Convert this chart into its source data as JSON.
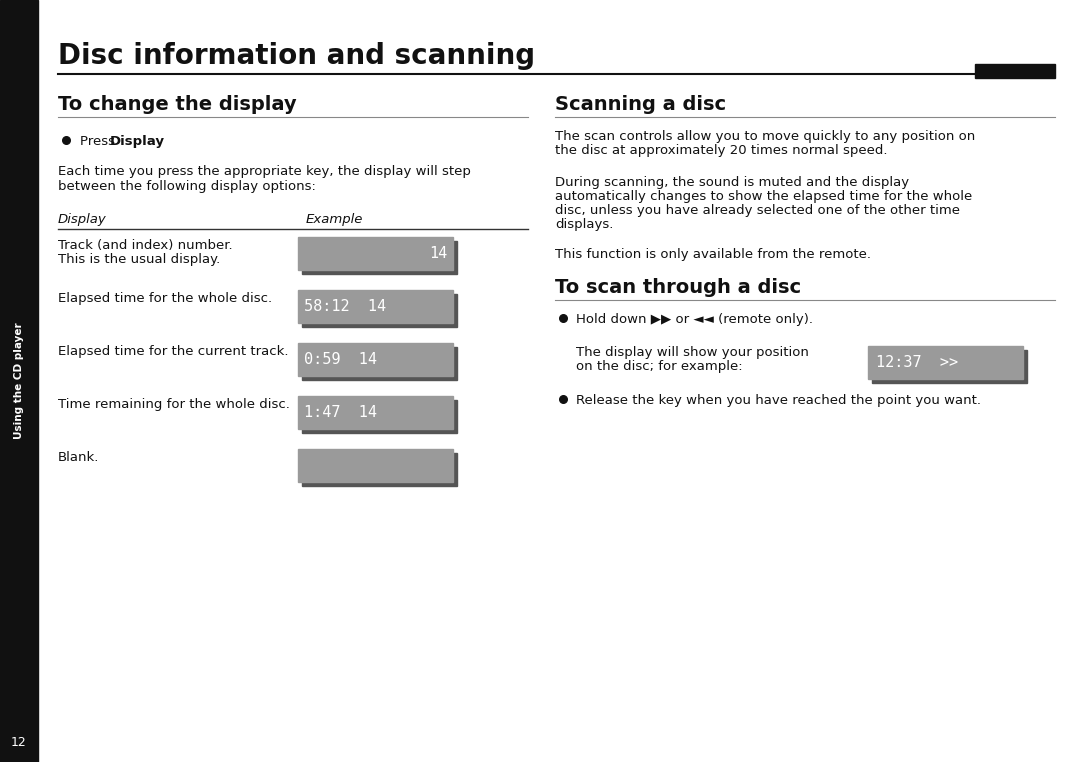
{
  "page_bg": "#ffffff",
  "sidebar_bg": "#111111",
  "sidebar_text": "Using the CD player",
  "page_num": "12",
  "main_title": "Disc information and scanning",
  "left_section_title": "To change the display",
  "right_section_title": "Scanning a disc",
  "right_section2_title": "To scan through a disc",
  "display_col_header": "Display",
  "example_col_header": "Example",
  "each_time_text1": "Each time you press the appropriate key, the display will step",
  "each_time_text2": "between the following display options:",
  "display_rows": [
    {
      "label1": "Track (and index) number.",
      "label2": "This is the usual display.",
      "lcd_text": "14",
      "align": "right"
    },
    {
      "label1": "Elapsed time for the whole disc.",
      "label2": "",
      "lcd_text": "58:12  14",
      "align": "left"
    },
    {
      "label1": "Elapsed time for the current track.",
      "label2": "",
      "lcd_text": "0:59  14",
      "align": "left"
    },
    {
      "label1": "Time remaining for the whole disc.",
      "label2": "",
      "lcd_text": "1:47  14",
      "align": "left"
    },
    {
      "label1": "Blank.",
      "label2": "",
      "lcd_text": "",
      "align": "left"
    }
  ],
  "lcd_bg": "#9a9a9a",
  "lcd_shadow": "#555555",
  "lcd_text_color": "#ffffff",
  "scanning_para1a": "The scan controls allow you to move quickly to any position on",
  "scanning_para1b": "the disc at approximately 20 times normal speed.",
  "scanning_para2a": "During scanning, the sound is muted and the display",
  "scanning_para2b": "automatically changes to show the elapsed time for the whole",
  "scanning_para2c": "disc, unless you have already selected one of the other time",
  "scanning_para2d": "displays.",
  "scanning_para3": "This function is only available from the remote.",
  "scan_disc_bullet": "Hold down ▶▶ or ◄◄ (remote only).",
  "scan_disc_para1": "The display will show your position",
  "scan_disc_para2": "on the disc; for example:",
  "scan_disc_lcd": "12:37  >>",
  "scan_disc_release": "Release the key when you have reached the point you want.",
  "title_fontsize": 20,
  "section_fontsize": 14,
  "body_fontsize": 9.5,
  "lcd_fontsize": 11
}
